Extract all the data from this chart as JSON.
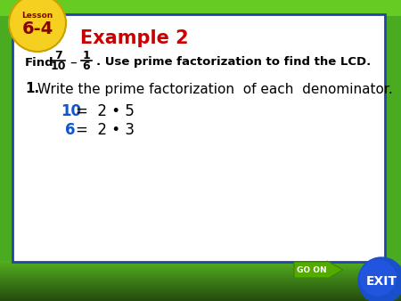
{
  "bg_outer": "#4aaa20",
  "bg_inner": "#ffffff",
  "inner_border_color": "#2244aa",
  "lesson_tab_bg": "#f5d020",
  "lesson_tab_border": "#c8a000",
  "lesson_label": "Lesson",
  "lesson_number": "6-4",
  "lesson_text_color": "#8b0000",
  "example_title": "Example 2",
  "example_title_color": "#cc0000",
  "find_bold": "Find",
  "fraction1_num": "7",
  "fraction1_den": "10",
  "fraction2_num": "1",
  "fraction2_den": "6",
  "use_text": ". Use prime factorization to find the LCD.",
  "step1_label": "1.",
  "step1_text": "Write the prime factorization  of each  denominator.",
  "line1_num": "10",
  "line1_eq": "=  2 • 5",
  "line2_num": "6",
  "line2_eq": "=  2 • 3",
  "num_color": "#1155cc",
  "eq_color": "#000000",
  "go_on_text": "GO ON",
  "go_on_color": "#55aa00",
  "go_on_arrow_color": "#449900",
  "exit_bg": "#1a4fcc",
  "exit_text": "EXIT",
  "bottom_bar_color": "#55bb10",
  "top_bar_color": "#66cc22"
}
